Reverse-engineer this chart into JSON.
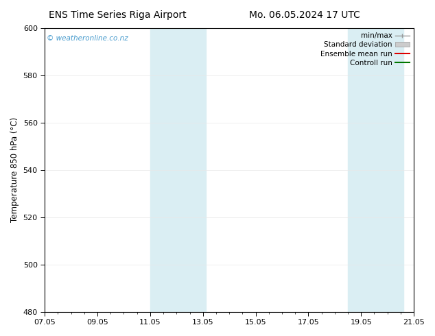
{
  "title_left": "ENS Time Series Riga Airport",
  "title_right": "Mo. 06.05.2024 17 UTC",
  "ylabel": "Temperature 850 hPa (°C)",
  "ylim": [
    480,
    600
  ],
  "yticks": [
    480,
    500,
    520,
    540,
    560,
    580,
    600
  ],
  "xtick_labels": [
    "07.05",
    "09.05",
    "11.05",
    "13.05",
    "15.05",
    "17.05",
    "19.05",
    "21.05"
  ],
  "xtick_positions": [
    0,
    2,
    4,
    6,
    8,
    10,
    12,
    14
  ],
  "x_total": 14,
  "shaded_regions": [
    {
      "x_start": 4.0,
      "x_end": 6.1,
      "color": "#daeef3"
    },
    {
      "x_start": 11.5,
      "x_end": 13.6,
      "color": "#daeef3"
    }
  ],
  "legend_items": [
    {
      "label": "min/max",
      "color": "#999999",
      "type": "line_with_caps"
    },
    {
      "label": "Standard deviation",
      "color": "#cccccc",
      "type": "bar"
    },
    {
      "label": "Ensemble mean run",
      "color": "#dd0000",
      "type": "line"
    },
    {
      "label": "Controll run",
      "color": "#007700",
      "type": "line"
    }
  ],
  "watermark_text": "© weatheronline.co.nz",
  "watermark_color": "#4499cc",
  "background_color": "#ffffff",
  "title_fontsize": 10,
  "axis_label_fontsize": 8.5,
  "tick_fontsize": 8,
  "legend_fontsize": 7.5
}
